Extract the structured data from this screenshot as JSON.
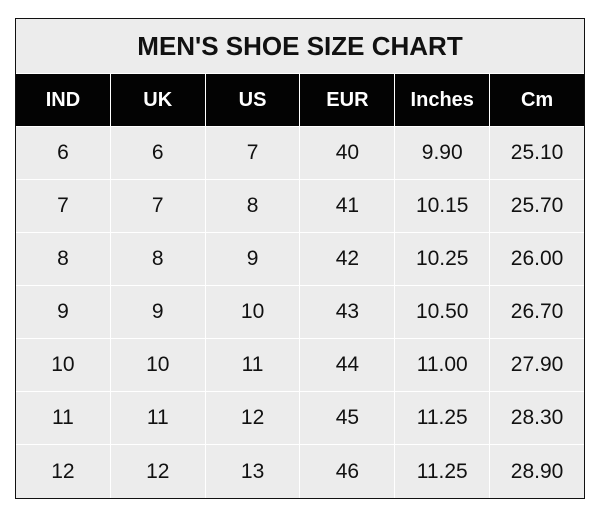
{
  "chart_data": {
    "type": "table",
    "title": "MEN'S SHOE SIZE CHART",
    "columns": [
      "IND",
      "UK",
      "US",
      "EUR",
      "Inches",
      "Cm"
    ],
    "rows": [
      [
        "6",
        "6",
        "7",
        "40",
        "9.90",
        "25.10"
      ],
      [
        "7",
        "7",
        "8",
        "41",
        "10.15",
        "25.70"
      ],
      [
        "8",
        "8",
        "9",
        "42",
        "10.25",
        "26.00"
      ],
      [
        "9",
        "9",
        "10",
        "43",
        "10.50",
        "26.70"
      ],
      [
        "10",
        "10",
        "11",
        "44",
        "11.00",
        "27.90"
      ],
      [
        "11",
        "11",
        "12",
        "45",
        "11.25",
        "28.30"
      ],
      [
        "12",
        "12",
        "13",
        "46",
        "11.25",
        "28.90"
      ]
    ],
    "colors": {
      "header_bg": "#030303",
      "header_text": "#ffffff",
      "cell_bg": "#ececec",
      "grid": "#ffffff"
    }
  }
}
